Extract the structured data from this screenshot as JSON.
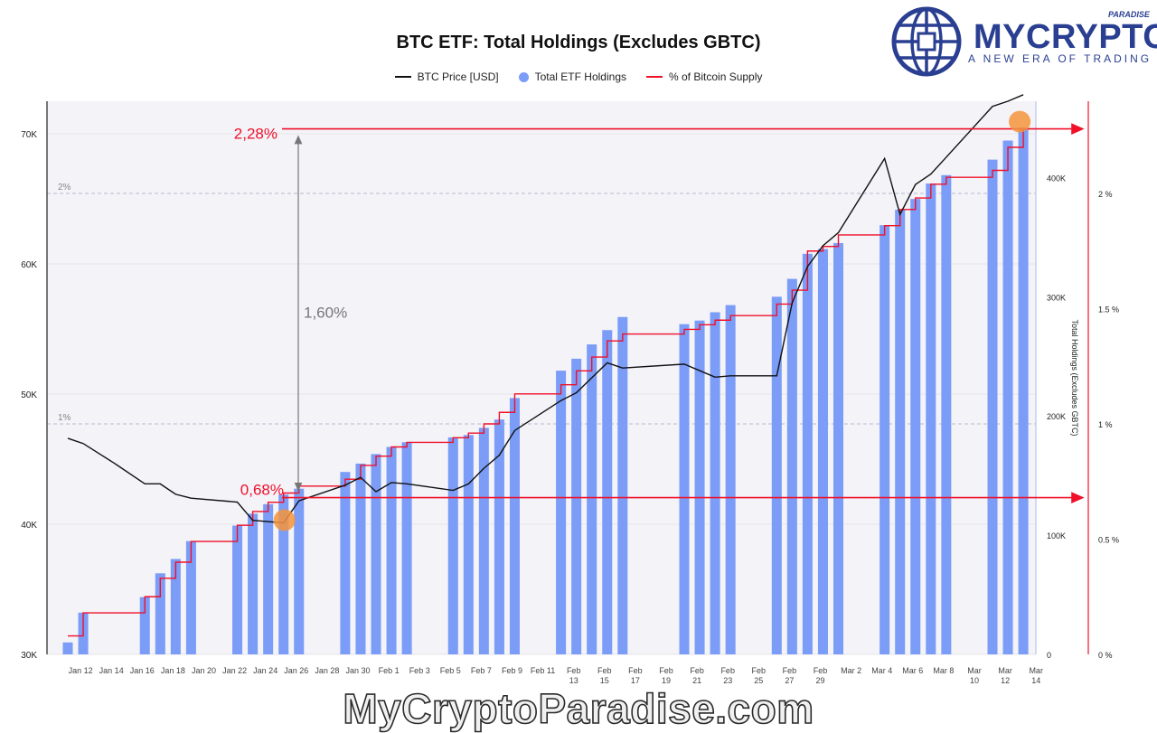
{
  "chart_data": {
    "type": "bar",
    "title": "BTC ETF: Total Holdings (Excludes GBTC)",
    "legend": [
      {
        "label": "BTC Price [USD]",
        "color": "#111111",
        "kind": "line"
      },
      {
        "label": "Total ETF Holdings",
        "color": "#7b9cf7",
        "kind": "dot"
      },
      {
        "label": "% of Bitcoin Supply",
        "color": "#f0102a",
        "kind": "line"
      }
    ],
    "legend_position": "top-center",
    "x_tick_labels": [
      "Jan 12",
      "Jan 14",
      "Jan 16",
      "Jan 18",
      "Jan 20",
      "Jan 22",
      "Jan 24",
      "Jan 26",
      "Jan 28",
      "Jan 30",
      "Feb 1",
      "Feb 3",
      "Feb 5",
      "Feb 7",
      "Feb 9",
      "Feb 11",
      "Feb 13",
      "Feb 15",
      "Feb 17",
      "Feb 19",
      "Feb 21",
      "Feb 23",
      "Feb 25",
      "Feb 27",
      "Feb 29",
      "Mar 2",
      "Mar 4",
      "Mar 6",
      "Mar 8",
      "Mar 10",
      "Mar 12",
      "Mar 14"
    ],
    "y_left": {
      "ticks": [
        "30K",
        "40K",
        "50K",
        "60K",
        "70K"
      ],
      "values": [
        30000,
        40000,
        50000,
        60000,
        70000
      ],
      "range": [
        30000,
        72500
      ]
    },
    "y_right_holdings": {
      "label": "Total Holdings (Excludes GBTC)",
      "ticks": [
        "0",
        "100K",
        "200K",
        "300K",
        "400K"
      ],
      "values": [
        0,
        100000,
        200000,
        300000,
        400000
      ],
      "range": [
        0,
        464000
      ]
    },
    "y_right_pct": {
      "ticks": [
        "0 %",
        "0.5 %",
        "1 %",
        "1.5 %",
        "2 %"
      ],
      "values": [
        0,
        0.5,
        1,
        1.5,
        2
      ],
      "range": [
        0,
        2.4
      ]
    },
    "grid_labels": [
      {
        "text": "2%",
        "value": 2
      },
      {
        "text": "1%",
        "value": 1
      }
    ],
    "holdings": {
      "name": "Total ETF Holdings",
      "dates": [
        "2024-01-11",
        "2024-01-12",
        "2024-01-16",
        "2024-01-17",
        "2024-01-18",
        "2024-01-19",
        "2024-01-22",
        "2024-01-23",
        "2024-01-24",
        "2024-01-25",
        "2024-01-26",
        "2024-01-29",
        "2024-01-30",
        "2024-01-31",
        "2024-02-01",
        "2024-02-02",
        "2024-02-05",
        "2024-02-06",
        "2024-02-07",
        "2024-02-08",
        "2024-02-09",
        "2024-02-12",
        "2024-02-13",
        "2024-02-14",
        "2024-02-15",
        "2024-02-16",
        "2024-02-20",
        "2024-02-21",
        "2024-02-22",
        "2024-02-23",
        "2024-02-26",
        "2024-02-27",
        "2024-02-28",
        "2024-02-29",
        "2024-03-01",
        "2024-03-04",
        "2024-03-05",
        "2024-03-06",
        "2024-03-07",
        "2024-03-08",
        "2024-03-11",
        "2024-03-12",
        "2024-03-13"
      ],
      "values": [
        10000,
        35000,
        48000,
        68000,
        80000,
        95000,
        108000,
        118000,
        126000,
        134000,
        139000,
        153000,
        160000,
        168000,
        174000,
        178000,
        182000,
        184000,
        190000,
        197000,
        215000,
        238000,
        248000,
        260000,
        272000,
        283000,
        277000,
        280000,
        287000,
        293000,
        300000,
        315000,
        336000,
        340000,
        345000,
        360000,
        373000,
        382000,
        395000,
        402000,
        415000,
        431000,
        442000
      ]
    },
    "price": {
      "name": "BTC Price [USD]",
      "dates": [
        "2024-01-11",
        "2024-01-12",
        "2024-01-14",
        "2024-01-16",
        "2024-01-17",
        "2024-01-18",
        "2024-01-19",
        "2024-01-22",
        "2024-01-23",
        "2024-01-25",
        "2024-01-26",
        "2024-01-29",
        "2024-01-30",
        "2024-01-31",
        "2024-02-01",
        "2024-02-02",
        "2024-02-05",
        "2024-02-06",
        "2024-02-07",
        "2024-02-08",
        "2024-02-09",
        "2024-02-12",
        "2024-02-13",
        "2024-02-15",
        "2024-02-16",
        "2024-02-20",
        "2024-02-21",
        "2024-02-22",
        "2024-02-23",
        "2024-02-26",
        "2024-02-27",
        "2024-02-28",
        "2024-02-29",
        "2024-03-01",
        "2024-03-04",
        "2024-03-05",
        "2024-03-06",
        "2024-03-07",
        "2024-03-08",
        "2024-03-11",
        "2024-03-12",
        "2024-03-13"
      ],
      "values": [
        46600,
        46200,
        44700,
        43100,
        43100,
        42300,
        42000,
        41700,
        40300,
        40100,
        41800,
        43000,
        43600,
        42500,
        43200,
        43100,
        42600,
        43100,
        44300,
        45300,
        47200,
        49500,
        50100,
        52400,
        52000,
        52300,
        51800,
        51300,
        51400,
        51400,
        57000,
        59800,
        61400,
        62400,
        68100,
        63800,
        66100,
        66900,
        68200,
        72100,
        72500,
        73000
      ]
    },
    "percent_supply": {
      "name": "% of Bitcoin Supply",
      "dates": [
        "2024-01-11",
        "2024-01-12",
        "2024-01-16",
        "2024-01-17",
        "2024-01-18",
        "2024-01-19",
        "2024-01-22",
        "2024-01-23",
        "2024-01-24",
        "2024-01-25",
        "2024-01-26",
        "2024-01-29",
        "2024-01-30",
        "2024-01-31",
        "2024-02-01",
        "2024-02-02",
        "2024-02-05",
        "2024-02-06",
        "2024-02-07",
        "2024-02-08",
        "2024-02-09",
        "2024-02-12",
        "2024-02-13",
        "2024-02-14",
        "2024-02-15",
        "2024-02-16",
        "2024-02-20",
        "2024-02-21",
        "2024-02-22",
        "2024-02-23",
        "2024-02-26",
        "2024-02-27",
        "2024-02-28",
        "2024-02-29",
        "2024-03-01",
        "2024-03-04",
        "2024-03-05",
        "2024-03-06",
        "2024-03-07",
        "2024-03-08",
        "2024-03-11",
        "2024-03-12",
        "2024-03-13"
      ],
      "values": [
        0.08,
        0.18,
        0.25,
        0.33,
        0.4,
        0.49,
        0.56,
        0.62,
        0.66,
        0.7,
        0.73,
        0.76,
        0.82,
        0.86,
        0.9,
        0.92,
        0.94,
        0.96,
        1.0,
        1.05,
        1.13,
        1.17,
        1.23,
        1.29,
        1.36,
        1.39,
        1.41,
        1.43,
        1.45,
        1.47,
        1.52,
        1.58,
        1.75,
        1.77,
        1.82,
        1.86,
        1.93,
        1.98,
        2.04,
        2.07,
        2.1,
        2.2,
        2.28
      ]
    },
    "annotations": [
      {
        "text": "2,28%",
        "value_pct": 2.28,
        "color": "#f0102a"
      },
      {
        "text": "0,68%",
        "value_pct": 0.68,
        "color": "#f0102a"
      },
      {
        "text": "1,60%",
        "color": "#777777"
      }
    ]
  },
  "branding": {
    "logo_text": "MYCRYPTO",
    "logo_super": "PARADISE",
    "logo_tagline": "A NEW ERA OF TRADING",
    "watermark": "MyCryptoParadise.com",
    "logo_color": "#2a3f91"
  }
}
